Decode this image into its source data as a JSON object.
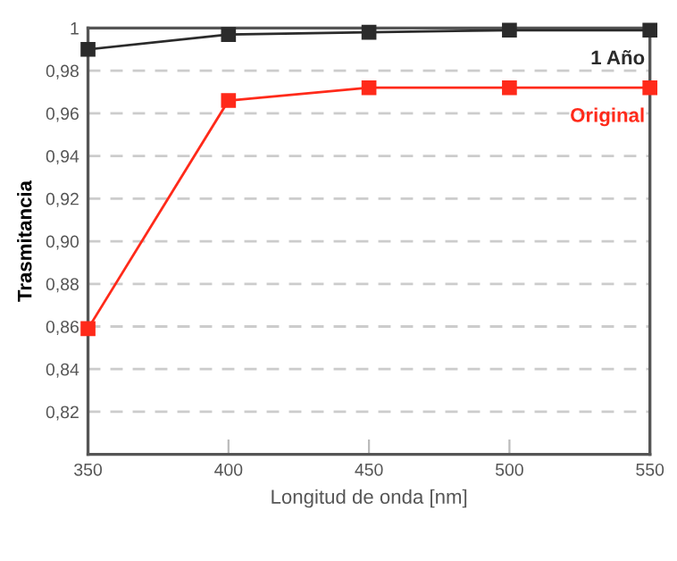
{
  "chart_data": {
    "type": "line",
    "xlabel": "Longitud de onda [nm]",
    "ylabel": "Trasmitancia",
    "x": [
      350,
      400,
      450,
      500,
      550
    ],
    "series": [
      {
        "name": "1 Año",
        "color": "#2b2b2b",
        "values": [
          0.99,
          0.997,
          0.998,
          0.999,
          0.999
        ]
      },
      {
        "name": "Original",
        "color": "#ff2a1a",
        "values": [
          0.859,
          0.966,
          0.972,
          0.972,
          0.972
        ]
      }
    ],
    "xlim": [
      350,
      550
    ],
    "xticks": [
      350,
      400,
      450,
      500,
      550
    ],
    "ylim": [
      0.8,
      1.0
    ],
    "yticks": [
      {
        "value": 0.82,
        "label": "0,82"
      },
      {
        "value": 0.84,
        "label": "0,84"
      },
      {
        "value": 0.86,
        "label": "0,86"
      },
      {
        "value": 0.88,
        "label": "0,88"
      },
      {
        "value": 0.9,
        "label": "0,90"
      },
      {
        "value": 0.92,
        "label": "0,92"
      },
      {
        "value": 0.94,
        "label": "0,94"
      },
      {
        "value": 0.96,
        "label": "0,96"
      },
      {
        "value": 0.98,
        "label": "0,98"
      },
      {
        "value": 1.0,
        "label": "1"
      }
    ],
    "grid": "y",
    "legend": false,
    "marker": "square",
    "line_style": "solid"
  }
}
